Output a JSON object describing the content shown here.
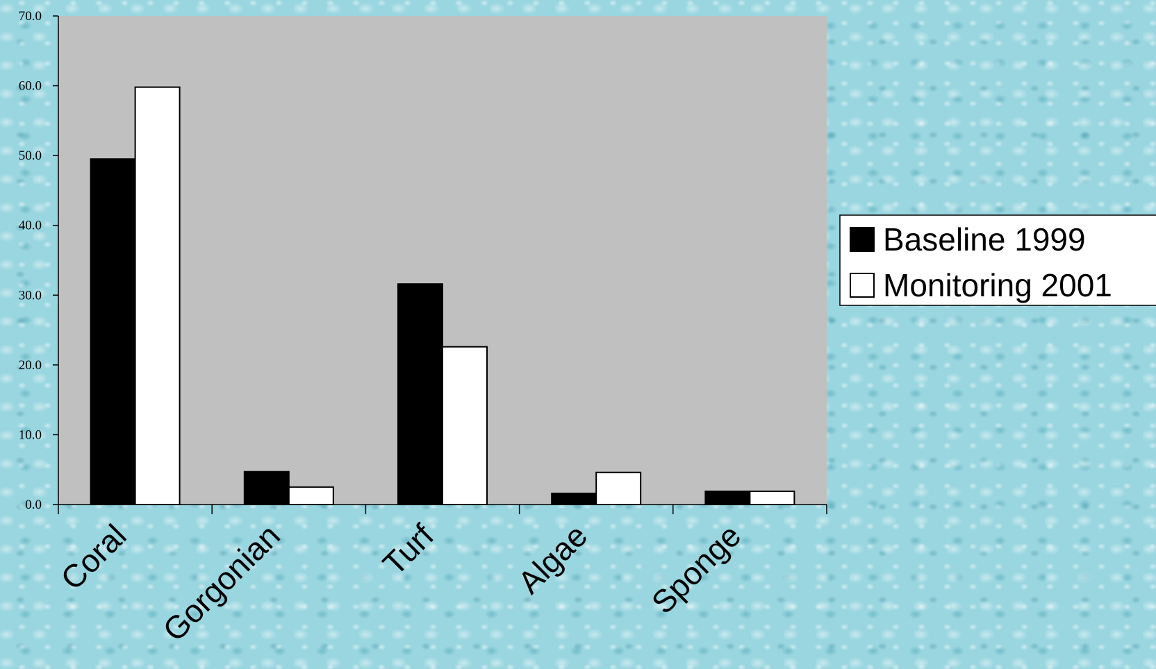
{
  "chart_data": {
    "type": "bar",
    "categories": [
      "Coral",
      "Gorgonian",
      "Turf",
      "Algae",
      "Sponge"
    ],
    "series": [
      {
        "name": "Baseline 1999",
        "values": [
          49.5,
          4.7,
          31.6,
          1.6,
          1.9
        ],
        "color": "#000000"
      },
      {
        "name": "Monitoring 2001",
        "values": [
          59.8,
          2.5,
          22.6,
          4.6,
          1.9
        ],
        "color": "#ffffff"
      }
    ],
    "ylim": [
      0,
      70
    ],
    "yticks": [
      "0.0",
      "10.0",
      "20.0",
      "30.0",
      "40.0",
      "50.0",
      "60.0",
      "70.0"
    ],
    "grid": false,
    "plot_background": "#c0c0c0",
    "legend_position": "right"
  }
}
